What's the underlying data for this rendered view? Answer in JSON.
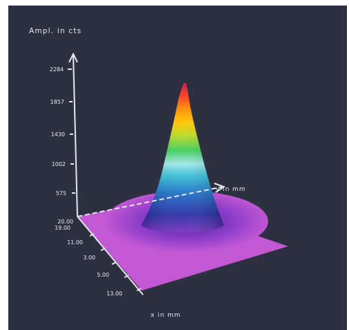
{
  "chart_data": {
    "type": "surface",
    "title": "Ampl. in cts",
    "z_axis": {
      "label": "Ampl. in cts",
      "ticks": [
        "2284",
        "1857",
        "1430",
        "1002",
        "575"
      ]
    },
    "x_axis": {
      "label": "x in mm",
      "ticks": [
        "19.00",
        "11.00",
        "3.00",
        "5.00",
        "13.00"
      ]
    },
    "y_axis": {
      "label": "y in mm",
      "ticks": [
        "20.00"
      ]
    },
    "peak_value": 2284,
    "colormap": [
      "#b04cc4",
      "#7a33c2",
      "#2b2fa8",
      "#1f6fc8",
      "#38c0d8",
      "#9ee8e8",
      "#3fcf5a",
      "#c8d820",
      "#ffc400",
      "#ff8a00",
      "#ff3b1a",
      "#c9133a"
    ],
    "background": "#2d3040",
    "base_color": "#c258d4"
  }
}
